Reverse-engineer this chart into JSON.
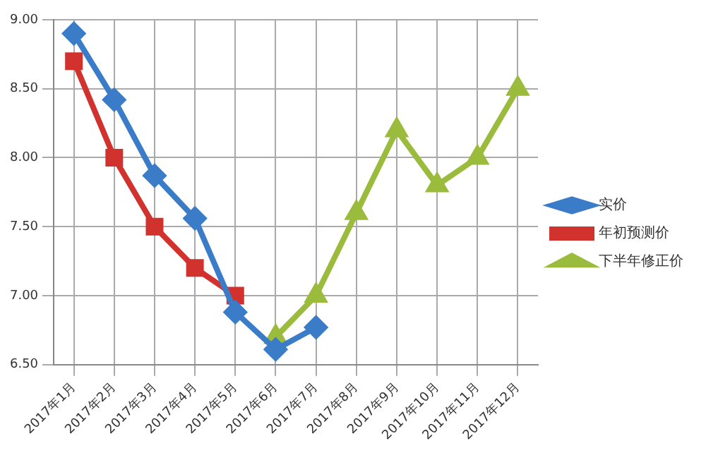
{
  "chart_data": {
    "type": "line",
    "categories": [
      "2017年1月",
      "2017年2月",
      "2017年3月",
      "2017年4月",
      "2017年5月",
      "2017年6月",
      "2017年7月",
      "2017年8月",
      "2017年9月",
      "2017年10月",
      "2017年11月",
      "2017年12月"
    ],
    "series": [
      {
        "name": "实价",
        "color": "#3a7cc8",
        "marker": "diamond",
        "values": [
          8.9,
          8.42,
          7.87,
          7.56,
          6.88,
          6.61,
          6.77,
          null,
          null,
          null,
          null,
          null
        ]
      },
      {
        "name": "年初预测价",
        "color": "#d2322d",
        "marker": "square",
        "values": [
          8.7,
          8.0,
          7.5,
          7.2,
          7.0,
          null,
          null,
          null,
          null,
          null,
          null,
          null
        ]
      },
      {
        "name": "下半年修正价",
        "color": "#9bbb3c",
        "marker": "triangle",
        "values": [
          null,
          null,
          null,
          null,
          null,
          6.7,
          7.0,
          7.6,
          8.2,
          7.8,
          8.0,
          8.5
        ]
      }
    ],
    "ylim": [
      6.5,
      9.0
    ],
    "yticks": [
      {
        "value": 6.5,
        "label": "6.50"
      },
      {
        "value": 7.0,
        "label": "7.00"
      },
      {
        "value": 7.5,
        "label": "7.50"
      },
      {
        "value": 8.0,
        "label": "8.00"
      },
      {
        "value": 8.5,
        "label": "8.50"
      },
      {
        "value": 9.0,
        "label": "9.00"
      }
    ],
    "grid": true,
    "legend": "right",
    "line_style": "solid"
  }
}
